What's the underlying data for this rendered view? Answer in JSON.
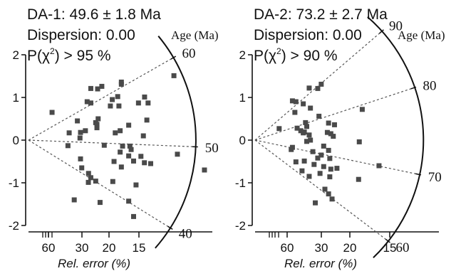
{
  "chart_data": [
    {
      "type": "scatter",
      "subtype": "radial-plot",
      "header": {
        "line1": "DA-1: 49.6 ± 1.8 Ma",
        "line2": "Dispersion: 0.00",
        "line3_prefix": "P(χ",
        "line3_sup": "2",
        "line3_suffix": ") > 95 %"
      },
      "arc_label": "Age (Ma)",
      "xlabel": "Rel. error (%)",
      "x_ticks": [
        "60",
        "30",
        "20",
        "15"
      ],
      "y_ticks": [
        "2",
        "1",
        "0",
        "-1",
        "-2"
      ],
      "ylim": [
        -2,
        2
      ],
      "age_ticks": [
        {
          "label": "60",
          "z": 0.57
        },
        {
          "label": "50",
          "z": -0.04
        },
        {
          "label": "40",
          "z": -0.62
        }
      ],
      "dashed_rays": [
        0.57,
        -0.04,
        -0.62
      ],
      "points": [
        [
          0.0135,
          0.65
        ],
        [
          0.0233,
          0.17
        ],
        [
          0.0226,
          -0.13
        ],
        [
          0.028,
          0.45
        ],
        [
          0.0298,
          0.18
        ],
        [
          0.0295,
          0.05
        ],
        [
          0.0298,
          -0.44
        ],
        [
          0.0305,
          -0.65
        ],
        [
          0.0326,
          0.22
        ],
        [
          0.0336,
          0.9
        ],
        [
          0.0357,
          1.21
        ],
        [
          0.0343,
          -0.99
        ],
        [
          0.0344,
          -0.78
        ],
        [
          0.0357,
          -0.88
        ],
        [
          0.0357,
          0.87
        ],
        [
          0.0385,
          0.41
        ],
        [
          0.0392,
          0.37
        ],
        [
          0.0385,
          -0.96
        ],
        [
          0.0399,
          0.5
        ],
        [
          0.0392,
          0.29
        ],
        [
          0.041,
          -1.46
        ],
        [
          0.0396,
          1.2
        ],
        [
          0.042,
          1.26
        ],
        [
          0.0434,
          -0.12
        ],
        [
          0.0469,
          0.8
        ],
        [
          0.048,
          0.95
        ],
        [
          0.0483,
          -0.97
        ],
        [
          0.0497,
          0.17
        ],
        [
          0.049,
          -0.5
        ],
        [
          0.0511,
          1.02
        ],
        [
          0.0518,
          0.8
        ],
        [
          0.0525,
          0.22
        ],
        [
          0.0525,
          -0.28
        ],
        [
          0.0532,
          1.36
        ],
        [
          0.0532,
          1.31
        ],
        [
          0.0539,
          -0.14
        ],
        [
          0.0532,
          -0.63
        ],
        [
          0.0574,
          0.35
        ],
        [
          0.0581,
          -0.14
        ],
        [
          0.0574,
          -0.37
        ],
        [
          0.0574,
          -1.43
        ],
        [
          0.0588,
          -0.22
        ],
        [
          0.0602,
          -0.49
        ],
        [
          0.0602,
          -1.79
        ],
        [
          0.0616,
          -1.05
        ],
        [
          0.063,
          0.87
        ],
        [
          0.0644,
          -0.38
        ],
        [
          0.0658,
          0.1
        ],
        [
          0.0664,
          -0.53
        ],
        [
          0.0678,
          0.47
        ],
        [
          0.07,
          -0.55
        ],
        [
          0.0685,
          0.87
        ],
        [
          0.0665,
          1.01
        ],
        [
          0.0833,
          1.51
        ],
        [
          0.0853,
          -0.33
        ],
        [
          0.1008,
          -0.7
        ],
        [
          0.0262,
          -1.4
        ]
      ]
    },
    {
      "type": "scatter",
      "subtype": "radial-plot",
      "header": {
        "line1": "DA-2: 73.2 ± 2.7 Ma",
        "line2": "Dispersion: 0.00",
        "line3_prefix": "P(χ",
        "line3_sup": "2",
        "line3_suffix": ") > 90 %"
      },
      "arc_label": "Age (Ma)",
      "xlabel": "Rel. error (%)",
      "x_ticks": [
        "60",
        "30",
        "20",
        "15"
      ],
      "y_ticks": [
        "2",
        "1",
        "0",
        "-1",
        "-2"
      ],
      "ylim": [
        -2,
        2
      ],
      "age_ticks": [
        {
          "label": "90",
          "z": 0.86
        },
        {
          "label": "80",
          "z": 0.33
        },
        {
          "label": "70",
          "z": -0.21
        },
        {
          "label": "60",
          "z": -0.76
        }
      ],
      "dashed_rays": [
        0.86,
        0.33,
        -0.21,
        -0.76
      ],
      "points": [
        [
          0.0138,
          0.27
        ],
        [
          0.0207,
          -0.22
        ],
        [
          0.0214,
          0.92
        ],
        [
          0.0228,
          0.65
        ],
        [
          0.0234,
          0.9
        ],
        [
          0.0234,
          -0.51
        ],
        [
          0.0241,
          0.28
        ],
        [
          0.0262,
          0.22
        ],
        [
          0.0269,
          -0.72
        ],
        [
          0.0276,
          0.17
        ],
        [
          0.0282,
          0.19
        ],
        [
          0.0289,
          0.41
        ],
        [
          0.0282,
          -0.49
        ],
        [
          0.0296,
          0.32
        ],
        [
          0.0296,
          -0.03
        ],
        [
          0.031,
          1.22
        ],
        [
          0.031,
          0.12
        ],
        [
          0.0317,
          0.0
        ],
        [
          0.031,
          -0.85
        ],
        [
          0.0317,
          0.75
        ],
        [
          0.0331,
          -0.27
        ],
        [
          0.0338,
          -0.57
        ],
        [
          0.0345,
          -1.47
        ],
        [
          0.0359,
          1.21
        ],
        [
          0.0359,
          -0.42
        ],
        [
          0.0366,
          0.56
        ],
        [
          0.0372,
          -0.78
        ],
        [
          0.0379,
          1.31
        ],
        [
          0.0379,
          -0.35
        ],
        [
          0.0393,
          -0.14
        ],
        [
          0.0393,
          -0.62
        ],
        [
          0.04,
          -1.15
        ],
        [
          0.0414,
          0.18
        ],
        [
          0.0421,
          0.4
        ],
        [
          0.0421,
          -1.26
        ],
        [
          0.0421,
          -0.24
        ],
        [
          0.0428,
          -0.43
        ],
        [
          0.0428,
          -0.86
        ],
        [
          0.0434,
          0.15
        ],
        [
          0.0434,
          -0.68
        ],
        [
          0.0441,
          -1.38
        ],
        [
          0.0448,
          0.09
        ],
        [
          0.0455,
          0.36
        ],
        [
          0.0469,
          -0.66
        ],
        [
          0.0593,
          -0.92
        ],
        [
          0.0597,
          -0.04
        ],
        [
          0.0614,
          0.72
        ],
        [
          0.071,
          -0.6
        ],
        [
          0.0214,
          -0.17
        ],
        [
          0.0276,
          0.85
        ]
      ]
    }
  ]
}
